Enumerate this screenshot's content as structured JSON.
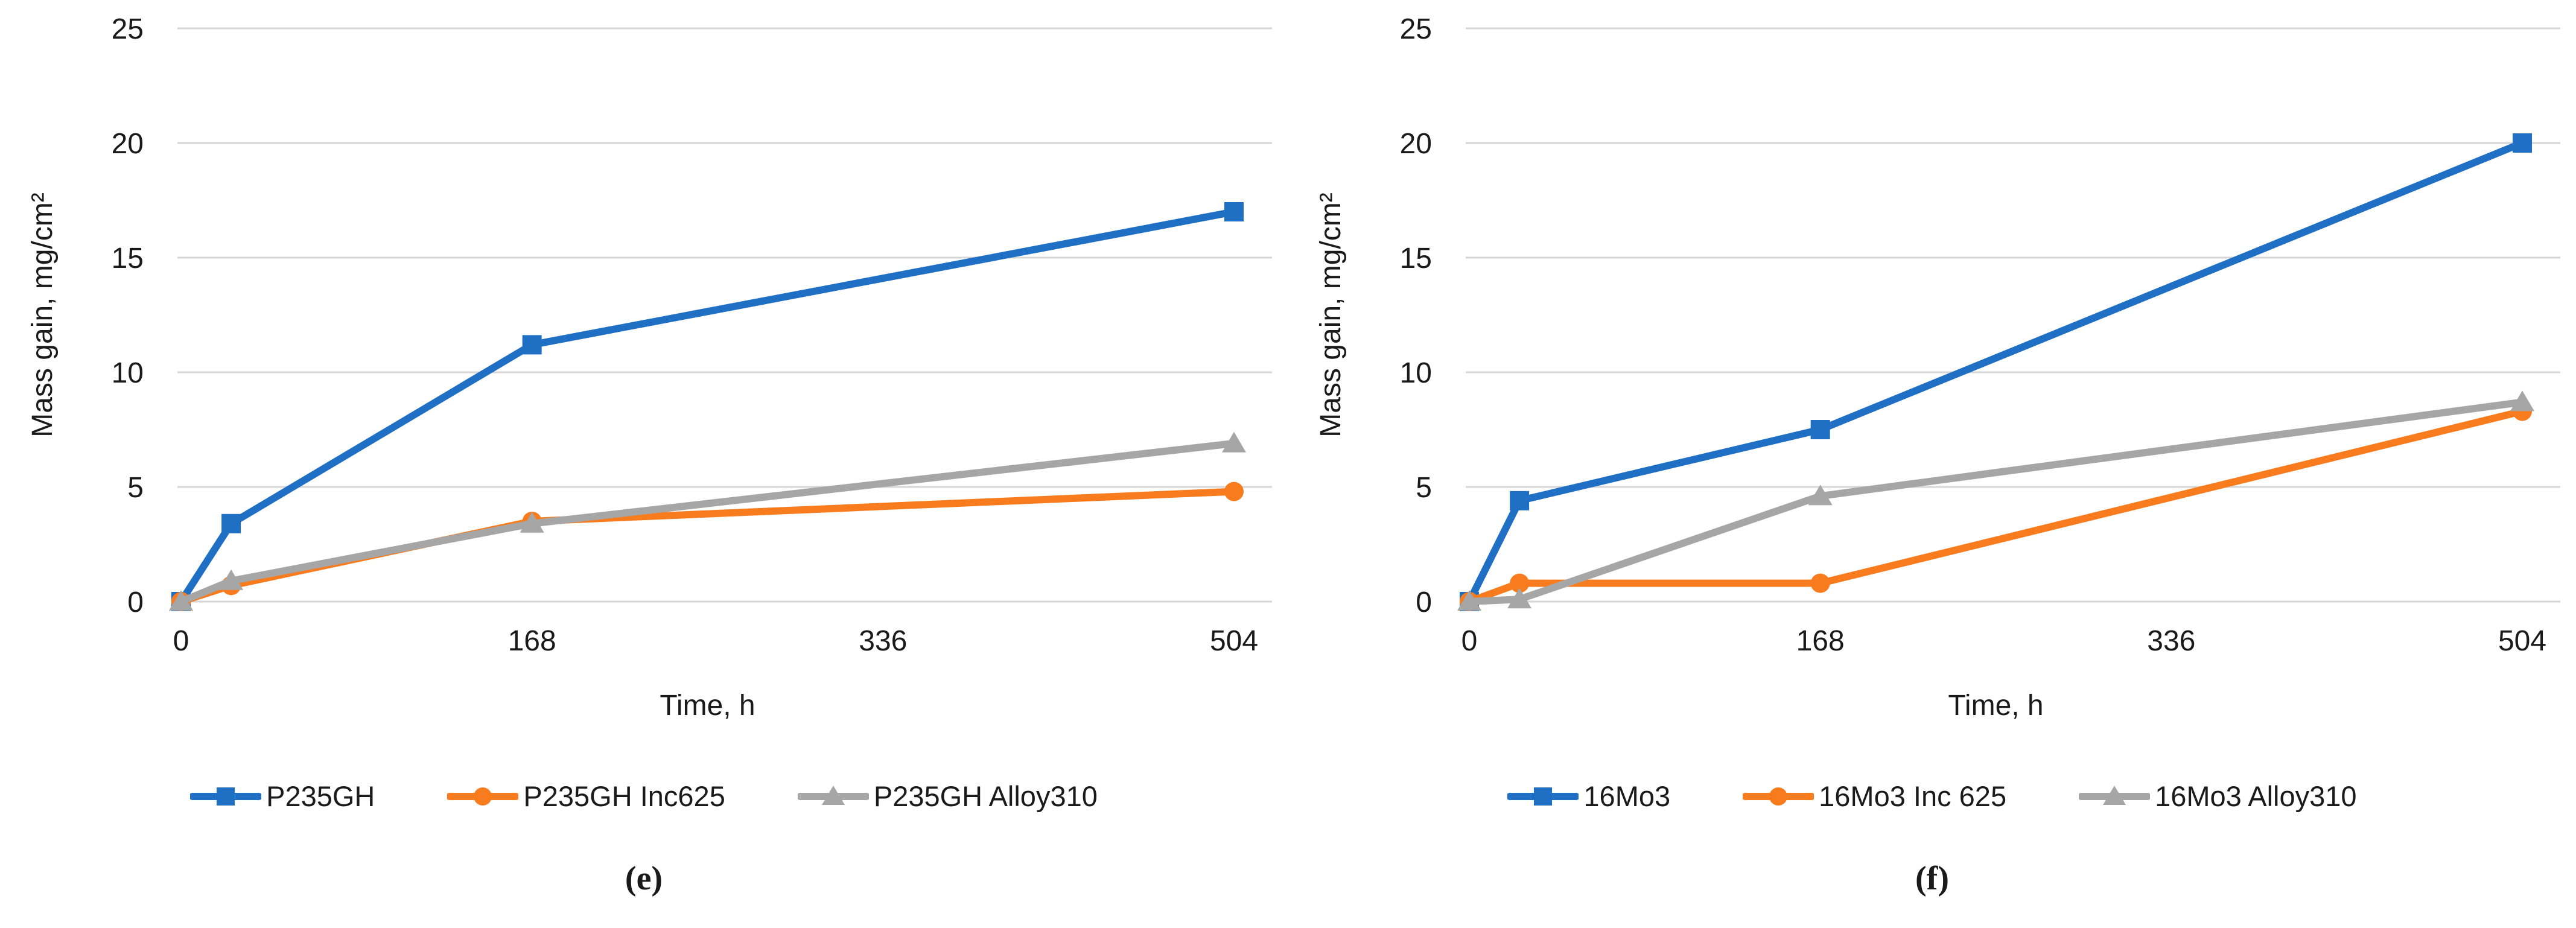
{
  "colors": {
    "blue": "#1F6FC5",
    "orange": "#F87B1E",
    "gray": "#A6A6A6",
    "gridline": "#D6D6D6",
    "text": "#1A1A1A"
  },
  "chart_data": [
    {
      "id": "e",
      "type": "line",
      "caption": "(e)",
      "title": "",
      "xlabel": "Time, h",
      "ylabel": "Mass gain, mg/cm²",
      "xlim": [
        0,
        504
      ],
      "ylim": [
        0,
        25
      ],
      "xticks": [
        0,
        168,
        336,
        504
      ],
      "yticks": [
        0,
        5,
        10,
        15,
        20,
        25
      ],
      "grid": "horizontal",
      "legend_position": "bottom",
      "x": [
        0,
        24,
        168,
        504
      ],
      "series": [
        {
          "name": "P235GH",
          "color_key": "blue",
          "marker": "square",
          "values": [
            0,
            3.4,
            11.2,
            17.0
          ]
        },
        {
          "name": "P235GH Inc625",
          "color_key": "orange",
          "marker": "circle",
          "values": [
            0,
            0.7,
            3.5,
            4.8
          ]
        },
        {
          "name": "P235GH Alloy310",
          "color_key": "gray",
          "marker": "triangle",
          "values": [
            0,
            0.9,
            3.4,
            6.9
          ]
        }
      ]
    },
    {
      "id": "f",
      "type": "line",
      "caption": "(f)",
      "title": "",
      "xlabel": "Time, h",
      "ylabel": "Mass gain, mg/cm²",
      "xlim": [
        0,
        504
      ],
      "ylim": [
        0,
        25
      ],
      "xticks": [
        0,
        168,
        336,
        504
      ],
      "yticks": [
        0,
        5,
        10,
        15,
        20,
        25
      ],
      "grid": "horizontal",
      "legend_position": "bottom",
      "x": [
        0,
        24,
        168,
        504
      ],
      "series": [
        {
          "name": "16Mo3",
          "color_key": "blue",
          "marker": "square",
          "values": [
            0,
            4.4,
            7.5,
            20.0
          ]
        },
        {
          "name": "16Mo3 Inc 625",
          "color_key": "orange",
          "marker": "circle",
          "values": [
            0,
            0.8,
            0.8,
            8.3
          ]
        },
        {
          "name": "16Mo3 Alloy310",
          "color_key": "gray",
          "marker": "triangle",
          "values": [
            0,
            0.1,
            4.6,
            8.7
          ]
        }
      ]
    }
  ]
}
